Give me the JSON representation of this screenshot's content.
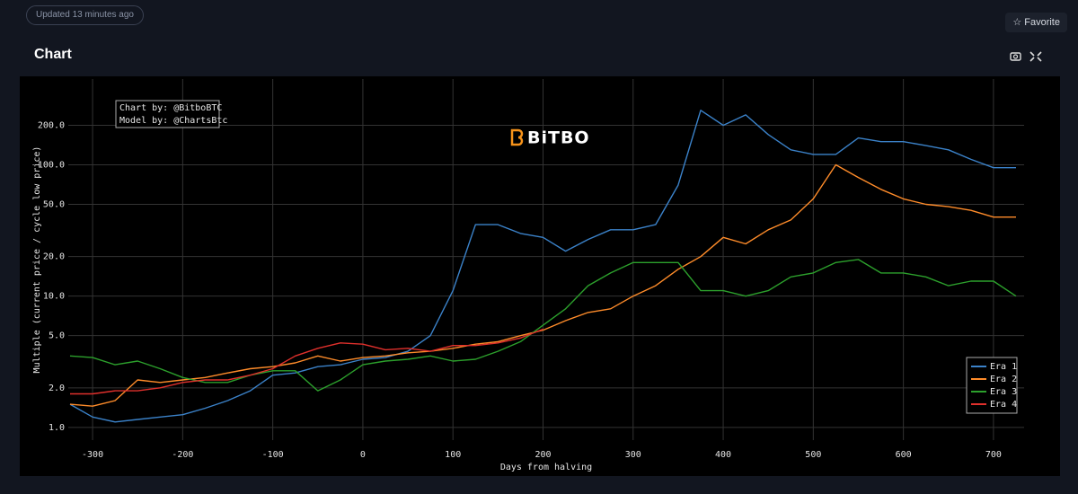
{
  "header": {
    "status": "Updated 13 minutes ago",
    "favorite": "Favorite"
  },
  "panel": {
    "title": "Chart"
  },
  "chart_data": {
    "type": "line",
    "log_y": true,
    "grid": true,
    "legend": "bottom-right",
    "x_label": "Days from halving",
    "y_label": "Multiple (current price / cycle low price)",
    "annotation": [
      "Chart by: @BitboBTC",
      "Model by: @ChartsBtc"
    ],
    "watermark": "BiTBO",
    "xlim": [
      -327,
      734
    ],
    "xticks": [
      -300,
      -200,
      -100,
      0,
      100,
      200,
      300,
      400,
      500,
      600,
      700
    ],
    "ylim": [
      0.8,
      450
    ],
    "yticks": [
      {
        "value": 1,
        "label": "1.0"
      },
      {
        "value": 2,
        "label": "2.0"
      },
      {
        "value": 5,
        "label": "5.0"
      },
      {
        "value": 10,
        "label": "10.0"
      },
      {
        "value": 20,
        "label": "20.0"
      },
      {
        "value": 50,
        "label": "50.0"
      },
      {
        "value": 100,
        "label": "100.0"
      },
      {
        "value": 200,
        "label": "200.0"
      }
    ],
    "x": [
      -325,
      -300,
      -275,
      -250,
      -225,
      -200,
      -175,
      -150,
      -125,
      -100,
      -75,
      -50,
      -25,
      0,
      25,
      50,
      75,
      100,
      125,
      150,
      175,
      200,
      225,
      250,
      275,
      300,
      325,
      350,
      375,
      400,
      425,
      450,
      475,
      500,
      525,
      550,
      575,
      600,
      625,
      650,
      675,
      700,
      725
    ],
    "series": [
      {
        "name": "Era 1",
        "color": "#3b82c9",
        "values": [
          1.5,
          1.2,
          1.1,
          1.15,
          1.2,
          1.25,
          1.4,
          1.6,
          1.9,
          2.5,
          2.6,
          2.9,
          3.0,
          3.3,
          3.4,
          3.8,
          5,
          11,
          35,
          35,
          30,
          28,
          22,
          27,
          32,
          32,
          35,
          70,
          260,
          200,
          240,
          170,
          130,
          120,
          120,
          160,
          150,
          150,
          140,
          130,
          110,
          95,
          95
        ]
      },
      {
        "name": "Era 2",
        "color": "#ff8c2a",
        "values": [
          1.5,
          1.45,
          1.6,
          2.3,
          2.2,
          2.3,
          2.4,
          2.6,
          2.8,
          2.9,
          3.1,
          3.5,
          3.2,
          3.4,
          3.5,
          3.7,
          3.8,
          4.0,
          4.3,
          4.5,
          5,
          5.5,
          6.5,
          7.5,
          8,
          10,
          12,
          16,
          20,
          28,
          25,
          32,
          38,
          55,
          100,
          80,
          65,
          55,
          50,
          48,
          45,
          40,
          40
        ]
      },
      {
        "name": "Era 3",
        "color": "#2ca02c",
        "values": [
          3.5,
          3.4,
          3.0,
          3.2,
          2.8,
          2.4,
          2.2,
          2.2,
          2.5,
          2.7,
          2.7,
          1.9,
          2.3,
          3.0,
          3.2,
          3.3,
          3.5,
          3.2,
          3.3,
          3.8,
          4.5,
          6,
          8,
          12,
          15,
          18,
          18,
          18,
          11,
          11,
          10,
          11,
          14,
          15,
          18,
          19,
          15,
          15,
          14,
          12,
          13,
          13,
          10
        ]
      },
      {
        "name": "Era 4",
        "color": "#e0302c",
        "values": [
          1.8,
          1.8,
          1.9,
          1.9,
          2.0,
          2.2,
          2.3,
          2.3,
          2.5,
          2.8,
          3.5,
          4.0,
          4.4,
          4.3,
          3.9,
          4.0,
          3.8,
          4.2,
          4.2,
          4.4,
          4.8,
          5.6,
          null,
          null,
          null,
          null,
          null,
          null,
          null,
          null,
          null,
          null,
          null,
          null,
          null,
          null,
          null,
          null,
          null,
          null,
          null,
          null,
          null
        ]
      }
    ]
  }
}
